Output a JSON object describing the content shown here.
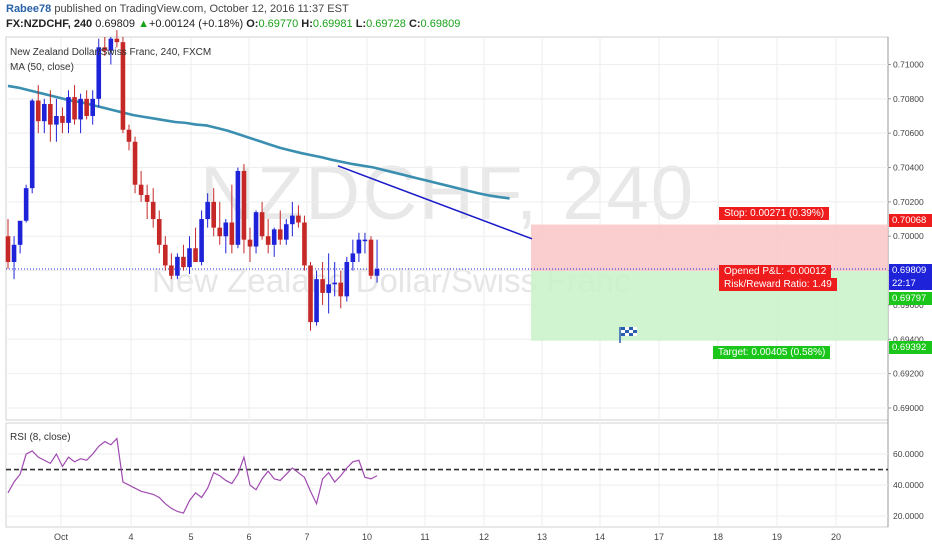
{
  "header": {
    "user": "Rabee78",
    "published": " published on TradingView.com, October 12, 2016 11:37 EST",
    "symbol": "FX:NZDCHF, 240",
    "last": "0.69809",
    "change_arrow": "▲",
    "change": "+0.00124 (+0.18%)",
    "o_label": "O:",
    "o_value": "0.69770",
    "h_label": "H:",
    "h_value": "0.69981",
    "l_label": "L:",
    "l_value": "0.69728",
    "c_label": "C:",
    "c_value": "0.69809"
  },
  "watermark": {
    "symbol": "NZDCHF, 240",
    "name": "New Zealand Dollar/Swiss Franc"
  },
  "legend": {
    "title": "New Zealand Dollar/Swiss Franc, 240, FXCM",
    "ma": "MA (50, close)",
    "rsi": "RSI (8, close)"
  },
  "position": {
    "stop_label": "Stop: 0.00271 (0.39%)",
    "pnl_label": "Opened P&L: -0.00012",
    "rr_label": "Risk/Reward Ratio: 1.49",
    "target_label": "Target: 0.00405 (0.58%)",
    "stop_price": 0.70068,
    "entry_price": 0.69797,
    "target_price": 0.69392,
    "flag_icon": "checkered-flag-icon"
  },
  "price_tags": {
    "stop": "0.70068",
    "last": "0.69809",
    "countdown": "22:17",
    "entry": "0.69797",
    "target": "0.69392"
  },
  "colors": {
    "up": "#1e22d8",
    "down": "#c62828",
    "ma": "#3a8fb0",
    "rsi": "#a04ab0",
    "trendline": "#1a1ac8",
    "stop_zone": "#f9c5c5",
    "target_zone": "#c8f2c8",
    "stop_tag": "#ee1c1c",
    "target_tag": "#19c619",
    "last_tag": "#1e22d8"
  },
  "chart_data": {
    "type": "candlestick",
    "symbol": "FX:NZDCHF",
    "timeframe": "240",
    "price_axis": {
      "ticks": [
        0.71,
        0.708,
        0.706,
        0.704,
        0.702,
        0.7,
        0.698,
        0.696,
        0.694,
        0.692,
        0.69
      ],
      "tick_labels": [
        "0.71000",
        "0.70800",
        "0.70600",
        "0.70400",
        "0.70200",
        "0.70000",
        "0.69800",
        "0.69600",
        "0.69400",
        "0.69200",
        "0.69000"
      ],
      "range": [
        0.6893,
        0.7116
      ]
    },
    "time_axis": {
      "labels": [
        "Oct",
        "4",
        "5",
        "6",
        "7",
        "10",
        "11",
        "12",
        "13",
        "14",
        "17",
        "18",
        "19",
        "20"
      ]
    },
    "candles": [
      {
        "o": 0.7,
        "h": 0.701,
        "l": 0.6981,
        "c": 0.6985
      },
      {
        "o": 0.6985,
        "h": 0.7,
        "l": 0.6975,
        "c": 0.6995
      },
      {
        "o": 0.6995,
        "h": 0.7008,
        "l": 0.699,
        "c": 0.7009
      },
      {
        "o": 0.7009,
        "h": 0.703,
        "l": 0.7008,
        "c": 0.7028
      },
      {
        "o": 0.7028,
        "h": 0.708,
        "l": 0.7025,
        "c": 0.7079
      },
      {
        "o": 0.7079,
        "h": 0.7088,
        "l": 0.706,
        "c": 0.7067
      },
      {
        "o": 0.7067,
        "h": 0.708,
        "l": 0.706,
        "c": 0.7077
      },
      {
        "o": 0.7077,
        "h": 0.7085,
        "l": 0.7055,
        "c": 0.7065
      },
      {
        "o": 0.7065,
        "h": 0.708,
        "l": 0.7055,
        "c": 0.707
      },
      {
        "o": 0.707,
        "h": 0.7075,
        "l": 0.706,
        "c": 0.7066
      },
      {
        "o": 0.7066,
        "h": 0.7085,
        "l": 0.706,
        "c": 0.7081
      },
      {
        "o": 0.7081,
        "h": 0.7088,
        "l": 0.7065,
        "c": 0.7068
      },
      {
        "o": 0.7068,
        "h": 0.7083,
        "l": 0.706,
        "c": 0.708
      },
      {
        "o": 0.708,
        "h": 0.7085,
        "l": 0.7068,
        "c": 0.707
      },
      {
        "o": 0.707,
        "h": 0.7085,
        "l": 0.7065,
        "c": 0.708
      },
      {
        "o": 0.708,
        "h": 0.7115,
        "l": 0.7075,
        "c": 0.711
      },
      {
        "o": 0.711,
        "h": 0.7116,
        "l": 0.7105,
        "c": 0.7108
      },
      {
        "o": 0.7108,
        "h": 0.7116,
        "l": 0.71,
        "c": 0.7115
      },
      {
        "o": 0.7115,
        "h": 0.712,
        "l": 0.711,
        "c": 0.7113
      },
      {
        "o": 0.7113,
        "h": 0.7116,
        "l": 0.706,
        "c": 0.7062
      },
      {
        "o": 0.7062,
        "h": 0.7065,
        "l": 0.705,
        "c": 0.7055
      },
      {
        "o": 0.7055,
        "h": 0.7058,
        "l": 0.7025,
        "c": 0.703
      },
      {
        "o": 0.703,
        "h": 0.7038,
        "l": 0.702,
        "c": 0.7024
      },
      {
        "o": 0.7024,
        "h": 0.703,
        "l": 0.701,
        "c": 0.702
      },
      {
        "o": 0.702,
        "h": 0.7028,
        "l": 0.7005,
        "c": 0.701
      },
      {
        "o": 0.701,
        "h": 0.7015,
        "l": 0.699,
        "c": 0.6995
      },
      {
        "o": 0.6995,
        "h": 0.7,
        "l": 0.698,
        "c": 0.6983
      },
      {
        "o": 0.6983,
        "h": 0.699,
        "l": 0.6975,
        "c": 0.6977
      },
      {
        "o": 0.6977,
        "h": 0.699,
        "l": 0.6975,
        "c": 0.6988
      },
      {
        "o": 0.6988,
        "h": 0.6995,
        "l": 0.698,
        "c": 0.6982
      },
      {
        "o": 0.6982,
        "h": 0.7,
        "l": 0.6978,
        "c": 0.6993
      },
      {
        "o": 0.6993,
        "h": 0.7005,
        "l": 0.6985,
        "c": 0.6985
      },
      {
        "o": 0.6985,
        "h": 0.7015,
        "l": 0.6983,
        "c": 0.701
      },
      {
        "o": 0.701,
        "h": 0.7025,
        "l": 0.7005,
        "c": 0.702
      },
      {
        "o": 0.702,
        "h": 0.7028,
        "l": 0.7,
        "c": 0.7005
      },
      {
        "o": 0.7005,
        "h": 0.702,
        "l": 0.6995,
        "c": 0.7
      },
      {
        "o": 0.7,
        "h": 0.701,
        "l": 0.699,
        "c": 0.7008
      },
      {
        "o": 0.7008,
        "h": 0.703,
        "l": 0.699,
        "c": 0.6995
      },
      {
        "o": 0.6995,
        "h": 0.704,
        "l": 0.6993,
        "c": 0.7038
      },
      {
        "o": 0.7038,
        "h": 0.7042,
        "l": 0.699,
        "c": 0.6998
      },
      {
        "o": 0.6998,
        "h": 0.7005,
        "l": 0.6985,
        "c": 0.6994
      },
      {
        "o": 0.6994,
        "h": 0.7015,
        "l": 0.699,
        "c": 0.7014
      },
      {
        "o": 0.7014,
        "h": 0.702,
        "l": 0.6998,
        "c": 0.7
      },
      {
        "o": 0.7,
        "h": 0.701,
        "l": 0.699,
        "c": 0.6995
      },
      {
        "o": 0.6995,
        "h": 0.7005,
        "l": 0.6988,
        "c": 0.7004
      },
      {
        "o": 0.7004,
        "h": 0.7015,
        "l": 0.6995,
        "c": 0.6998
      },
      {
        "o": 0.6998,
        "h": 0.701,
        "l": 0.6995,
        "c": 0.7007
      },
      {
        "o": 0.7007,
        "h": 0.702,
        "l": 0.7,
        "c": 0.7012
      },
      {
        "o": 0.7012,
        "h": 0.7018,
        "l": 0.7005,
        "c": 0.7008
      },
      {
        "o": 0.7008,
        "h": 0.7012,
        "l": 0.698,
        "c": 0.6983
      },
      {
        "o": 0.6983,
        "h": 0.6985,
        "l": 0.6945,
        "c": 0.695
      },
      {
        "o": 0.695,
        "h": 0.698,
        "l": 0.6948,
        "c": 0.6975
      },
      {
        "o": 0.6975,
        "h": 0.6985,
        "l": 0.696,
        "c": 0.6967
      },
      {
        "o": 0.6967,
        "h": 0.699,
        "l": 0.6955,
        "c": 0.6972
      },
      {
        "o": 0.6972,
        "h": 0.6985,
        "l": 0.6965,
        "c": 0.6973
      },
      {
        "o": 0.6973,
        "h": 0.698,
        "l": 0.6958,
        "c": 0.6965
      },
      {
        "o": 0.6965,
        "h": 0.6988,
        "l": 0.6962,
        "c": 0.6985
      },
      {
        "o": 0.6985,
        "h": 0.6998,
        "l": 0.698,
        "c": 0.699
      },
      {
        "o": 0.699,
        "h": 0.7002,
        "l": 0.6985,
        "c": 0.6998
      },
      {
        "o": 0.6998,
        "h": 0.7002,
        "l": 0.699,
        "c": 0.6998
      },
      {
        "o": 0.6998,
        "h": 0.7,
        "l": 0.6975,
        "c": 0.6977
      },
      {
        "o": 0.6977,
        "h": 0.6998,
        "l": 0.6973,
        "c": 0.6981
      }
    ],
    "ma_50": [
      0.70875,
      0.70865,
      0.7085,
      0.70835,
      0.7082,
      0.70805,
      0.7079,
      0.7078,
      0.70765,
      0.7075,
      0.70735,
      0.7072,
      0.70705,
      0.70695,
      0.70685,
      0.70675,
      0.70665,
      0.7066,
      0.7065,
      0.70645,
      0.7063,
      0.70615,
      0.70595,
      0.70575,
      0.70555,
      0.70535,
      0.70515,
      0.705,
      0.70485,
      0.70472,
      0.7046,
      0.70445,
      0.70432,
      0.7042,
      0.7041,
      0.704,
      0.70385,
      0.7037,
      0.70355,
      0.7034,
      0.70325,
      0.7031,
      0.70295,
      0.7028,
      0.70265,
      0.7025,
      0.70238,
      0.70228,
      0.7022
    ],
    "trendline": {
      "from": {
        "candle": 38,
        "price": 0.7041
      },
      "to": {
        "candle": 61,
        "price": 0.7002
      }
    },
    "rsi": {
      "label": "RSI (8, close)",
      "axis_ticks": [
        60,
        40,
        20
      ],
      "axis_labels": [
        "60.0000",
        "40.0000",
        "20.0000"
      ],
      "level": 50,
      "values": [
        35,
        42,
        47,
        60,
        62,
        58,
        56,
        54,
        60,
        52,
        58,
        55,
        57,
        56,
        60,
        65,
        68,
        66,
        70,
        42,
        40,
        38,
        36,
        35,
        34,
        32,
        28,
        25,
        23,
        22,
        30,
        35,
        32,
        38,
        48,
        46,
        43,
        41,
        47,
        58,
        40,
        37,
        44,
        49,
        44,
        43,
        47,
        51,
        48,
        45,
        36,
        28,
        44,
        48,
        42,
        46,
        51,
        55,
        56,
        45,
        44,
        46
      ]
    }
  }
}
